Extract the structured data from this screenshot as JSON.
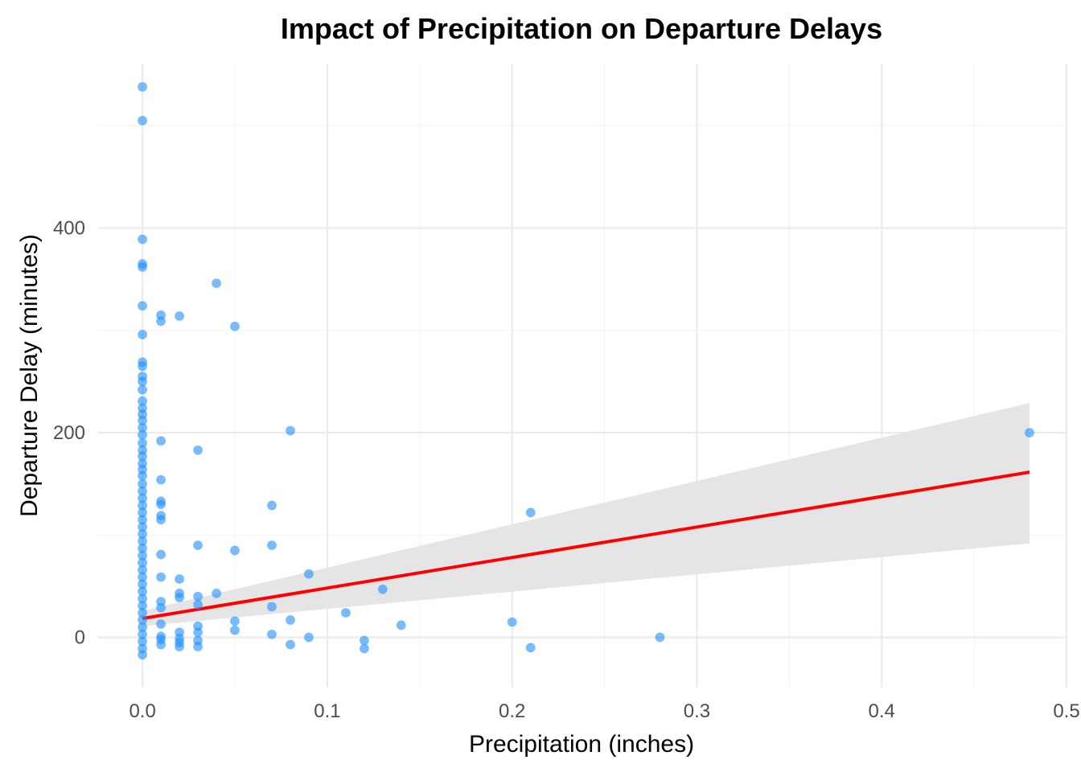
{
  "chart_data": {
    "type": "scatter",
    "title": "Impact of Precipitation on Departure Delays",
    "xlabel": "Precipitation (inches)",
    "ylabel": "Departure Delay (minutes)",
    "xlim": [
      -0.024,
      0.5
    ],
    "ylim": [
      -49,
      560
    ],
    "x_ticks": [
      0.0,
      0.1,
      0.2,
      0.3,
      0.4,
      0.5
    ],
    "x_tick_labels": [
      "0.0",
      "0.1",
      "0.2",
      "0.3",
      "0.4",
      "0.5"
    ],
    "y_ticks": [
      0,
      200,
      400
    ],
    "y_tick_labels": [
      "0",
      "200",
      "400"
    ],
    "grid": true,
    "legend": "none",
    "point_color": "#1E90FF",
    "point_alpha": 0.6,
    "trend": {
      "method": "linear",
      "color": "#FF0000",
      "band_color": "#E5E5E5",
      "line": [
        [
          0.0,
          18.5
        ],
        [
          0.48,
          161.5
        ]
      ],
      "band_upper": [
        [
          0.0,
          26
        ],
        [
          0.48,
          229
        ]
      ],
      "band_lower": [
        [
          0.0,
          11
        ],
        [
          0.48,
          92
        ]
      ]
    },
    "points": [
      [
        0,
        538
      ],
      [
        0,
        505
      ],
      [
        0,
        389
      ],
      [
        0,
        365
      ],
      [
        0,
        362
      ],
      [
        0,
        324
      ],
      [
        0,
        296
      ],
      [
        0,
        269
      ],
      [
        0,
        265
      ],
      [
        0,
        255
      ],
      [
        0,
        250
      ],
      [
        0,
        242
      ],
      [
        0,
        231
      ],
      [
        0,
        224
      ],
      [
        0,
        218
      ],
      [
        0,
        212
      ],
      [
        0,
        205
      ],
      [
        0,
        198
      ],
      [
        0,
        190
      ],
      [
        0,
        183
      ],
      [
        0,
        177
      ],
      [
        0,
        170
      ],
      [
        0,
        164
      ],
      [
        0,
        158
      ],
      [
        0,
        150
      ],
      [
        0,
        143
      ],
      [
        0,
        136
      ],
      [
        0,
        129
      ],
      [
        0,
        122
      ],
      [
        0,
        115
      ],
      [
        0,
        108
      ],
      [
        0,
        101
      ],
      [
        0,
        94
      ],
      [
        0,
        87
      ],
      [
        0,
        80
      ],
      [
        0,
        73
      ],
      [
        0,
        66
      ],
      [
        0,
        59
      ],
      [
        0,
        52
      ],
      [
        0,
        45
      ],
      [
        0,
        38
      ],
      [
        0,
        31
      ],
      [
        0,
        24
      ],
      [
        0,
        17
      ],
      [
        0,
        10
      ],
      [
        0,
        3
      ],
      [
        0,
        -4
      ],
      [
        0,
        -11
      ],
      [
        0,
        -17
      ],
      [
        0.01,
        315
      ],
      [
        0.01,
        309
      ],
      [
        0.01,
        192
      ],
      [
        0.01,
        154
      ],
      [
        0.01,
        133
      ],
      [
        0.01,
        130
      ],
      [
        0.01,
        119
      ],
      [
        0.01,
        115
      ],
      [
        0.01,
        81
      ],
      [
        0.01,
        59
      ],
      [
        0.01,
        35
      ],
      [
        0.01,
        29
      ],
      [
        0.01,
        13
      ],
      [
        0.01,
        1
      ],
      [
        0.01,
        -2
      ],
      [
        0.01,
        -7
      ],
      [
        0.02,
        314
      ],
      [
        0.02,
        57
      ],
      [
        0.02,
        43
      ],
      [
        0.02,
        39
      ],
      [
        0.02,
        5
      ],
      [
        0.02,
        -1
      ],
      [
        0.02,
        -5
      ],
      [
        0.02,
        -9
      ],
      [
        0.03,
        183
      ],
      [
        0.03,
        90
      ],
      [
        0.03,
        40
      ],
      [
        0.03,
        32
      ],
      [
        0.03,
        11
      ],
      [
        0.03,
        5
      ],
      [
        0.03,
        -3
      ],
      [
        0.03,
        -9
      ],
      [
        0.04,
        346
      ],
      [
        0.04,
        43
      ],
      [
        0.05,
        304
      ],
      [
        0.05,
        85
      ],
      [
        0.05,
        16
      ],
      [
        0.05,
        7
      ],
      [
        0.07,
        129
      ],
      [
        0.07,
        90
      ],
      [
        0.07,
        30
      ],
      [
        0.07,
        3
      ],
      [
        0.08,
        202
      ],
      [
        0.08,
        17
      ],
      [
        0.08,
        -7
      ],
      [
        0.09,
        62
      ],
      [
        0.09,
        0
      ],
      [
        0.11,
        24
      ],
      [
        0.12,
        -3
      ],
      [
        0.12,
        -11
      ],
      [
        0.13,
        47
      ],
      [
        0.14,
        12
      ],
      [
        0.2,
        15
      ],
      [
        0.21,
        122
      ],
      [
        0.21,
        -10
      ],
      [
        0.28,
        0
      ],
      [
        0.48,
        200
      ]
    ]
  }
}
